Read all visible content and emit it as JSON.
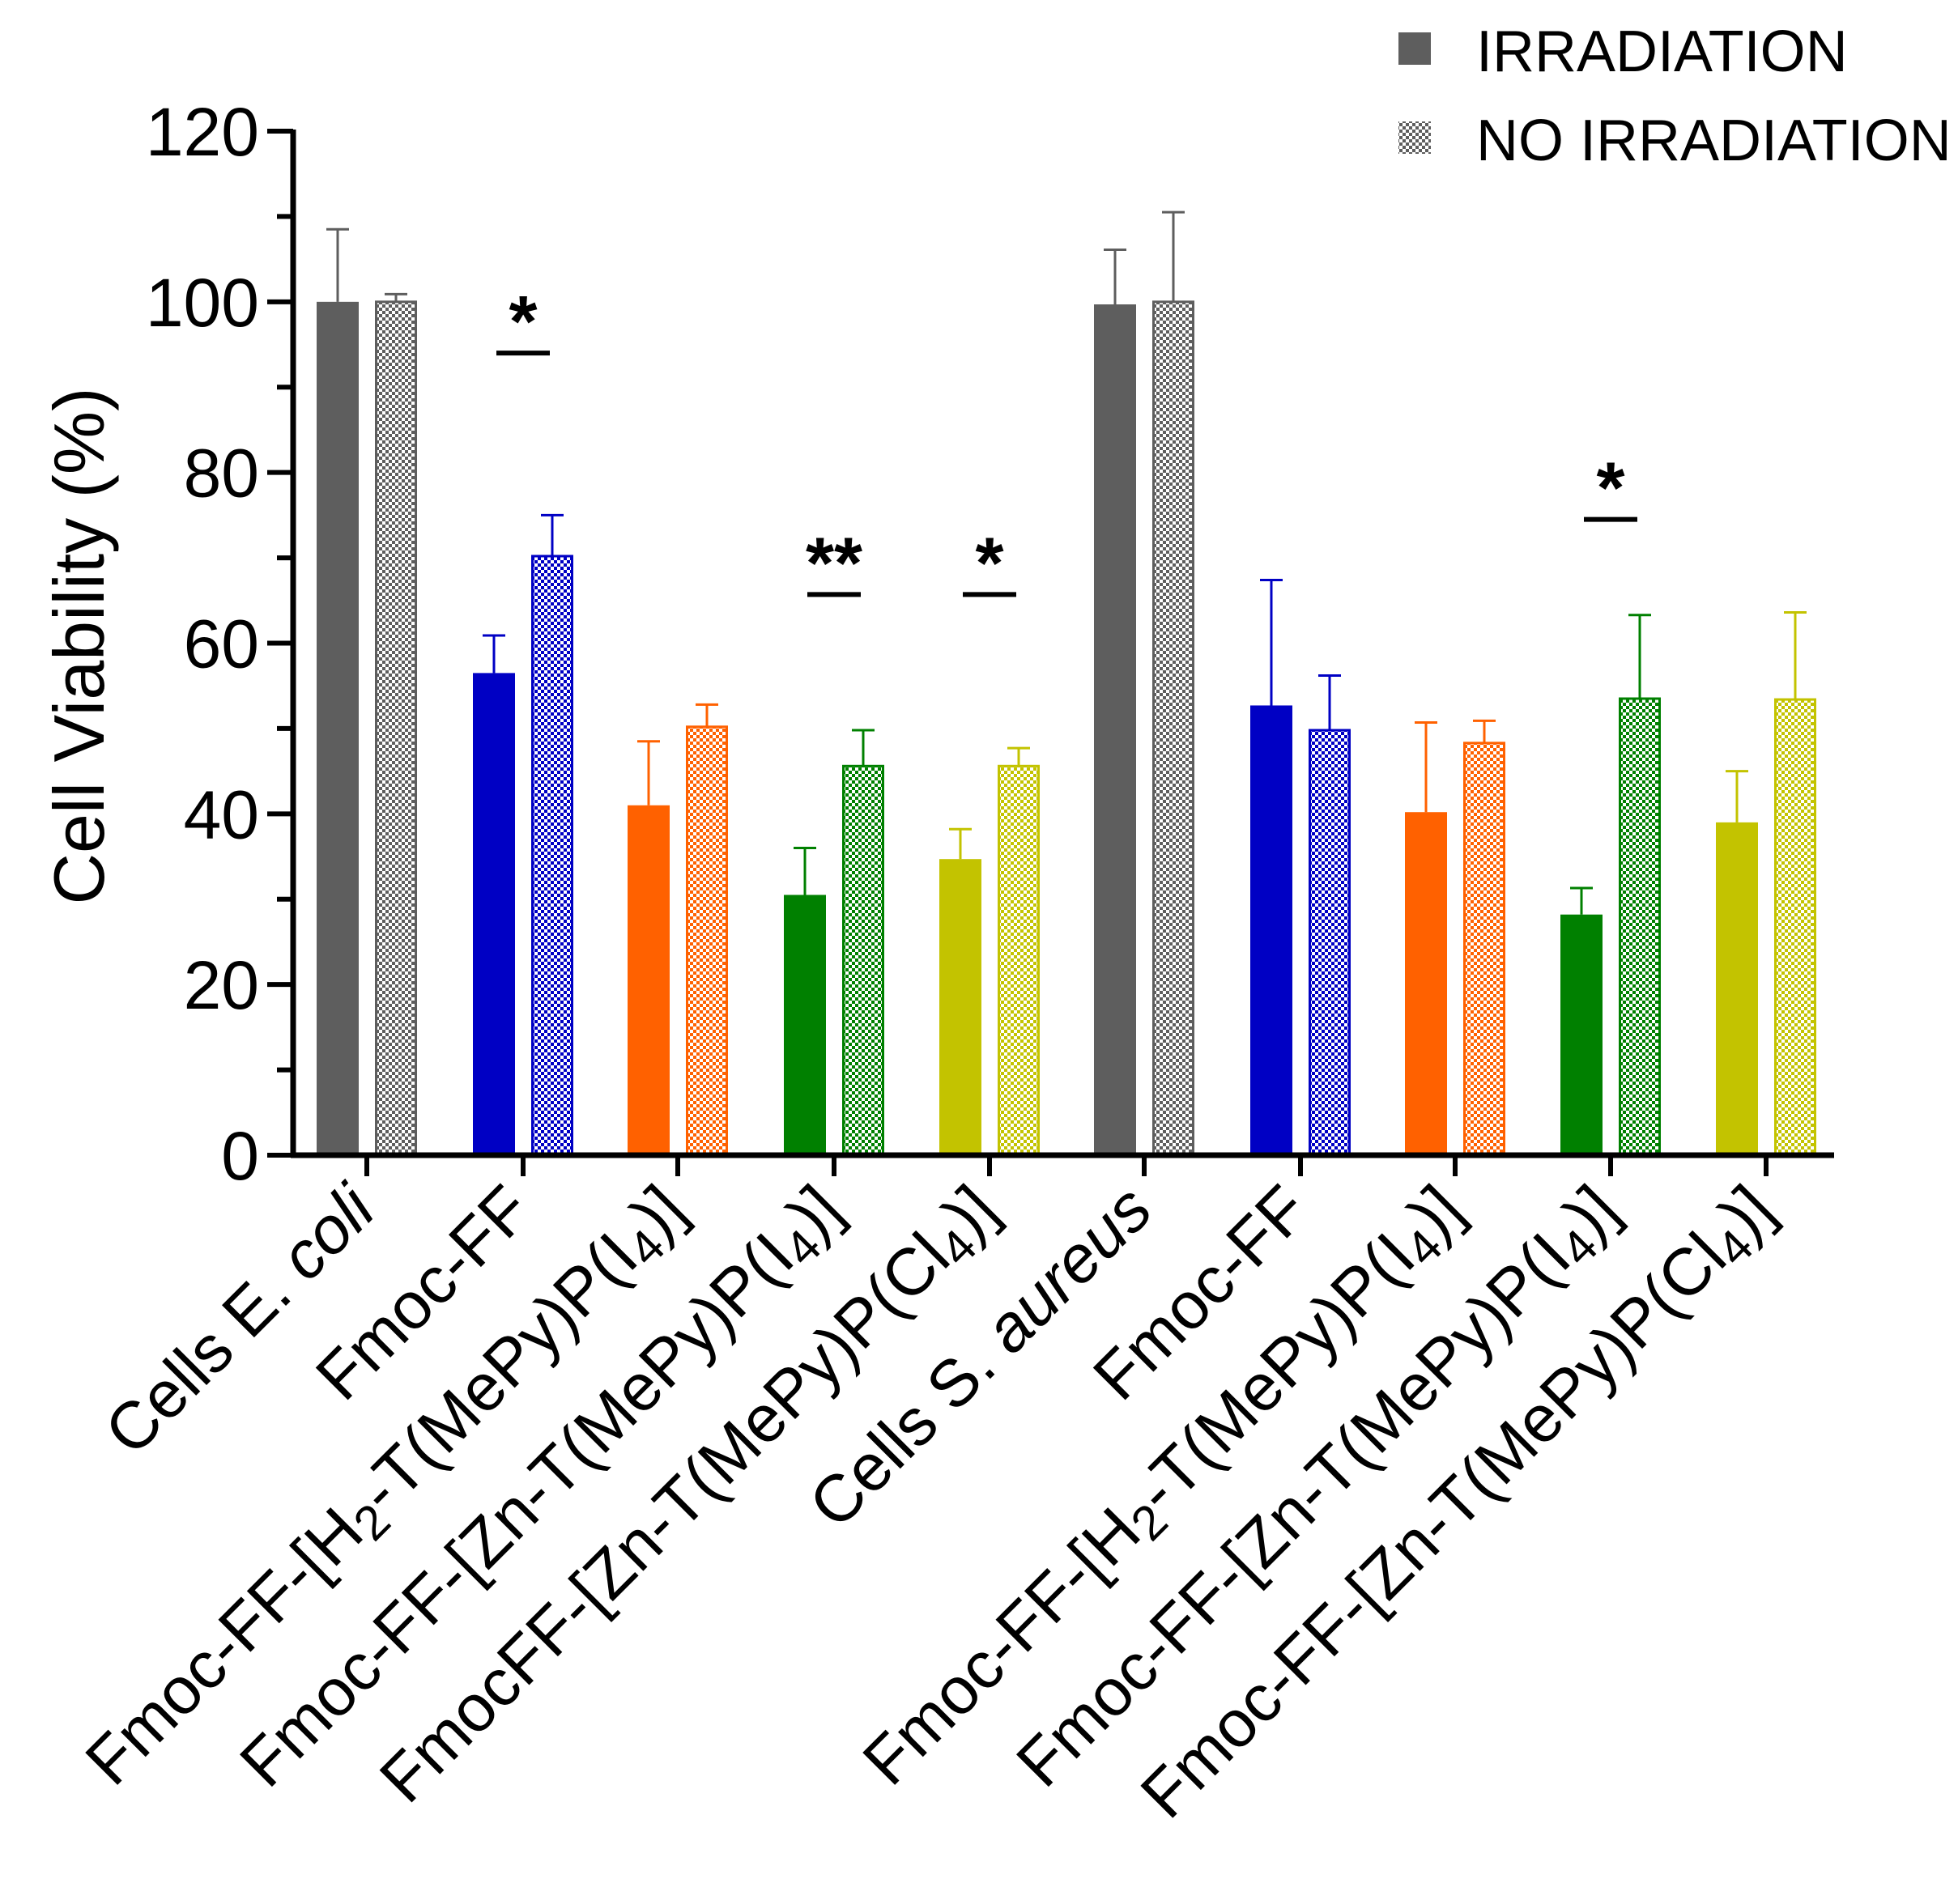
{
  "chart_data": {
    "type": "bar",
    "ylabel": "Cell Viability (%)",
    "ylim": [
      0,
      120
    ],
    "yticks": [
      "0",
      "20",
      "40",
      "60",
      "80",
      "100",
      "120"
    ],
    "categories": [
      {
        "parts": [
          {
            "t": "Cells E. "
          },
          {
            "t": "coli",
            "style": "italic"
          }
        ]
      },
      {
        "parts": [
          {
            "t": "Fmoc-FF"
          }
        ]
      },
      {
        "parts": [
          {
            "t": "Fmoc-FF-[H"
          },
          {
            "t": "2",
            "style": "sub"
          },
          {
            "t": "-T(MePy)P(I"
          },
          {
            "t": "4",
            "style": "sub"
          },
          {
            "t": ")]"
          }
        ]
      },
      {
        "parts": [
          {
            "t": "Fmoc-FF-[Zn-T(MePy)P(I"
          },
          {
            "t": "4",
            "style": "sub"
          },
          {
            "t": ")]"
          }
        ]
      },
      {
        "parts": [
          {
            "t": "FmocFF-[Zn-T(MePy)P(Cl"
          },
          {
            "t": "4",
            "style": "sub"
          },
          {
            "t": ")]"
          }
        ]
      },
      {
        "parts": [
          {
            "t": "Cells S. "
          },
          {
            "t": "aureus",
            "style": "italic"
          }
        ]
      },
      {
        "parts": [
          {
            "t": "Fmoc-FF"
          }
        ]
      },
      {
        "parts": [
          {
            "t": "Fmoc-FF-[H"
          },
          {
            "t": "2",
            "style": "sub"
          },
          {
            "t": "-T(MePy)P(I"
          },
          {
            "t": "4",
            "style": "sub"
          },
          {
            "t": ")]"
          }
        ]
      },
      {
        "parts": [
          {
            "t": "Fmoc-FF-[Zn-T(MePy)P(I"
          },
          {
            "t": "4",
            "style": "sub"
          },
          {
            "t": ")]"
          }
        ]
      },
      {
        "parts": [
          {
            "t": "Fmoc-FF-[Zn-T(MePy)P(Cl"
          },
          {
            "t": "4",
            "style": "sub"
          },
          {
            "t": ")]"
          }
        ]
      }
    ],
    "colors": [
      "#5e5e5e",
      "#0000c4",
      "#ff6100",
      "#008000",
      "#c3c300",
      "#5e5e5e",
      "#0000c4",
      "#ff6100",
      "#008000",
      "#c3c300"
    ],
    "series": [
      {
        "name": "IRRADIATION",
        "pattern": "solid",
        "values": [
          100,
          56.5,
          41,
          30.5,
          34.7,
          99.7,
          52.7,
          40.2,
          28.2,
          39
        ],
        "errors": [
          8.5,
          4.4,
          7.5,
          5.5,
          3.5,
          6.4,
          14.7,
          10.5,
          3.1,
          6
        ]
      },
      {
        "name": "NO IRRADIATION",
        "pattern": "checkered",
        "values": [
          100,
          70.2,
          50.2,
          45.6,
          45.6,
          100,
          49.8,
          48.3,
          53.5,
          53.4
        ],
        "errors": [
          0.9,
          4.8,
          2.6,
          4.2,
          2.1,
          10.5,
          6.4,
          2.6,
          9.8,
          10.2
        ]
      }
    ],
    "significance": [
      {
        "group": 1,
        "label": "*",
        "y": 94
      },
      {
        "group": 3,
        "label": "**",
        "y": 65.7
      },
      {
        "group": 4,
        "label": "*",
        "y": 65.7
      },
      {
        "group": 8,
        "label": "*",
        "y": 74.5
      }
    ],
    "legend": {
      "position": "top-right",
      "entries": [
        "IRRADIATION",
        "NO IRRADIATION"
      ]
    }
  }
}
